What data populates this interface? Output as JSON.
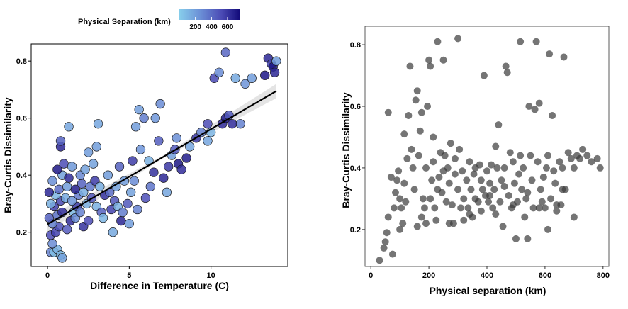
{
  "chart_data": [
    {
      "type": "scatter",
      "id": "left",
      "xlabel": "Difference in Temperature (C)",
      "ylabel": "Bray-Curtis Dissimilarity",
      "xlim": [
        -1,
        14.7
      ],
      "ylim": [
        0.08,
        0.86
      ],
      "xticks": [
        0,
        5,
        10
      ],
      "yticks": [
        0.2,
        0.4,
        0.6,
        0.8
      ],
      "trend": {
        "x0": 0,
        "y0": 0.228,
        "x1": 14,
        "y1": 0.695,
        "ci": 0.02
      },
      "color_legend": {
        "title": "Physical Separation (km)",
        "range": [
          0,
          750
        ],
        "ticks": [
          200,
          400,
          600
        ],
        "colors": [
          "#87ceeb",
          "#6b8fd6",
          "#4b4bb5",
          "#120b7a"
        ]
      },
      "points": [
        [
          0.2,
          0.13,
          300
        ],
        [
          0.4,
          0.13,
          60
        ],
        [
          0.6,
          0.14,
          120
        ],
        [
          0.8,
          0.12,
          90
        ],
        [
          0.9,
          0.11,
          180
        ],
        [
          0.3,
          0.16,
          260
        ],
        [
          0.2,
          0.19,
          500
        ],
        [
          0.5,
          0.2,
          540
        ],
        [
          0.7,
          0.22,
          480
        ],
        [
          0.3,
          0.23,
          300
        ],
        [
          0.1,
          0.25,
          420
        ],
        [
          0.6,
          0.26,
          350
        ],
        [
          0.9,
          0.27,
          610
        ],
        [
          0.4,
          0.29,
          560
        ],
        [
          0.2,
          0.3,
          120
        ],
        [
          0.8,
          0.31,
          520
        ],
        [
          1.1,
          0.32,
          150
        ],
        [
          0.5,
          0.33,
          100
        ],
        [
          0.1,
          0.34,
          640
        ],
        [
          0.7,
          0.35,
          380
        ],
        [
          1.2,
          0.36,
          200
        ],
        [
          0.3,
          0.38,
          250
        ],
        [
          0.9,
          0.4,
          180
        ],
        [
          0.6,
          0.42,
          700
        ],
        [
          1.0,
          0.44,
          500
        ],
        [
          0.8,
          0.5,
          640
        ],
        [
          0.8,
          0.52,
          420
        ],
        [
          1.3,
          0.57,
          160
        ],
        [
          1.5,
          0.43,
          210
        ],
        [
          1.2,
          0.21,
          440
        ],
        [
          1.4,
          0.24,
          620
        ],
        [
          1.6,
          0.27,
          70
        ],
        [
          1.8,
          0.29,
          560
        ],
        [
          1.5,
          0.31,
          230
        ],
        [
          1.9,
          0.33,
          330
        ],
        [
          1.7,
          0.35,
          680
        ],
        [
          2.1,
          0.37,
          420
        ],
        [
          1.3,
          0.39,
          620
        ],
        [
          2.0,
          0.4,
          280
        ],
        [
          2.3,
          0.42,
          180
        ],
        [
          1.7,
          0.25,
          260
        ],
        [
          2.2,
          0.22,
          600
        ],
        [
          2.5,
          0.24,
          500
        ],
        [
          2.0,
          0.27,
          300
        ],
        [
          2.4,
          0.3,
          120
        ],
        [
          2.7,
          0.32,
          460
        ],
        [
          2.2,
          0.34,
          130
        ],
        [
          2.6,
          0.36,
          340
        ],
        [
          2.9,
          0.38,
          560
        ],
        [
          3.0,
          0.29,
          120
        ],
        [
          2.8,
          0.44,
          180
        ],
        [
          2.5,
          0.48,
          200
        ],
        [
          3.0,
          0.5,
          190
        ],
        [
          3.1,
          0.58,
          160
        ],
        [
          3.3,
          0.27,
          420
        ],
        [
          3.5,
          0.33,
          600
        ],
        [
          3.2,
          0.36,
          130
        ],
        [
          3.7,
          0.4,
          200
        ],
        [
          3.4,
          0.25,
          100
        ],
        [
          3.9,
          0.28,
          540
        ],
        [
          4.1,
          0.31,
          460
        ],
        [
          3.8,
          0.34,
          380
        ],
        [
          4.3,
          0.29,
          120
        ],
        [
          4.0,
          0.2,
          150
        ],
        [
          4.5,
          0.24,
          650
        ],
        [
          4.2,
          0.36,
          180
        ],
        [
          4.7,
          0.38,
          200
        ],
        [
          4.4,
          0.43,
          420
        ],
        [
          4.6,
          0.27,
          320
        ],
        [
          4.9,
          0.3,
          450
        ],
        [
          5.1,
          0.34,
          180
        ],
        [
          5.3,
          0.38,
          260
        ],
        [
          5.0,
          0.23,
          200
        ],
        [
          5.5,
          0.28,
          300
        ],
        [
          5.2,
          0.45,
          560
        ],
        [
          5.7,
          0.49,
          230
        ],
        [
          5.4,
          0.57,
          200
        ],
        [
          5.9,
          0.6,
          320
        ],
        [
          5.6,
          0.63,
          190
        ],
        [
          6.0,
          0.32,
          480
        ],
        [
          6.3,
          0.36,
          350
        ],
        [
          6.5,
          0.41,
          600
        ],
        [
          6.2,
          0.45,
          120
        ],
        [
          6.8,
          0.52,
          430
        ],
        [
          6.6,
          0.6,
          220
        ],
        [
          6.9,
          0.65,
          260
        ],
        [
          7.1,
          0.39,
          640
        ],
        [
          7.4,
          0.43,
          580
        ],
        [
          7.6,
          0.47,
          200
        ],
        [
          7.3,
          0.34,
          160
        ],
        [
          7.8,
          0.49,
          440
        ],
        [
          8.0,
          0.44,
          700
        ],
        [
          8.2,
          0.42,
          620
        ],
        [
          7.9,
          0.53,
          250
        ],
        [
          8.5,
          0.46,
          680
        ],
        [
          8.7,
          0.5,
          160
        ],
        [
          9.1,
          0.53,
          580
        ],
        [
          9.4,
          0.55,
          300
        ],
        [
          9.8,
          0.58,
          500
        ],
        [
          10.2,
          0.74,
          520
        ],
        [
          10.5,
          0.76,
          260
        ],
        [
          10.7,
          0.58,
          620
        ],
        [
          10.9,
          0.6,
          700
        ],
        [
          11.1,
          0.61,
          450
        ],
        [
          10.9,
          0.83,
          400
        ],
        [
          11.5,
          0.74,
          150
        ],
        [
          12.1,
          0.72,
          230
        ],
        [
          12.5,
          0.74,
          200
        ],
        [
          13.3,
          0.75,
          700
        ],
        [
          13.5,
          0.81,
          640
        ],
        [
          13.7,
          0.79,
          520
        ],
        [
          13.8,
          0.78,
          720
        ],
        [
          13.9,
          0.76,
          640
        ],
        [
          14.0,
          0.8,
          200
        ],
        [
          11.8,
          0.58,
          300
        ],
        [
          11.3,
          0.58,
          620
        ],
        [
          9.8,
          0.52,
          160
        ],
        [
          10.0,
          0.55,
          100
        ]
      ]
    },
    {
      "type": "scatter",
      "id": "right",
      "xlabel": "Physical separation (km)",
      "ylabel": "Bray-Curtis Dissimilarity",
      "xlim": [
        -20,
        820
      ],
      "ylim": [
        0.08,
        0.86
      ],
      "xticks": [
        0,
        200,
        400,
        600,
        800
      ],
      "yticks": [
        0.2,
        0.4,
        0.6,
        0.8
      ],
      "points": [
        [
          30,
          0.1
        ],
        [
          45,
          0.14
        ],
        [
          50,
          0.16
        ],
        [
          55,
          0.19
        ],
        [
          60,
          0.24
        ],
        [
          75,
          0.12
        ],
        [
          80,
          0.27
        ],
        [
          85,
          0.32
        ],
        [
          90,
          0.36
        ],
        [
          95,
          0.39
        ],
        [
          100,
          0.2
        ],
        [
          100,
          0.3
        ],
        [
          105,
          0.27
        ],
        [
          110,
          0.22
        ],
        [
          115,
          0.35
        ],
        [
          120,
          0.29
        ],
        [
          125,
          0.43
        ],
        [
          130,
          0.57
        ],
        [
          135,
          0.73
        ],
        [
          140,
          0.46
        ],
        [
          145,
          0.4
        ],
        [
          150,
          0.33
        ],
        [
          155,
          0.62
        ],
        [
          160,
          0.65
        ],
        [
          165,
          0.44
        ],
        [
          170,
          0.52
        ],
        [
          175,
          0.58
        ],
        [
          180,
          0.3
        ],
        [
          185,
          0.27
        ],
        [
          190,
          0.22
        ],
        [
          195,
          0.6
        ],
        [
          200,
          0.75
        ],
        [
          205,
          0.73
        ],
        [
          210,
          0.36
        ],
        [
          215,
          0.42
        ],
        [
          220,
          0.27
        ],
        [
          225,
          0.23
        ],
        [
          230,
          0.81
        ],
        [
          235,
          0.37
        ],
        [
          240,
          0.45
        ],
        [
          245,
          0.32
        ],
        [
          250,
          0.75
        ],
        [
          255,
          0.44
        ],
        [
          260,
          0.29
        ],
        [
          265,
          0.4
        ],
        [
          270,
          0.35
        ],
        [
          275,
          0.48
        ],
        [
          280,
          0.28
        ],
        [
          285,
          0.22
        ],
        [
          290,
          0.38
        ],
        [
          300,
          0.82
        ],
        [
          300,
          0.33
        ],
        [
          305,
          0.46
        ],
        [
          310,
          0.27
        ],
        [
          315,
          0.39
        ],
        [
          320,
          0.3
        ],
        [
          330,
          0.36
        ],
        [
          335,
          0.27
        ],
        [
          340,
          0.42
        ],
        [
          345,
          0.33
        ],
        [
          350,
          0.24
        ],
        [
          355,
          0.38
        ],
        [
          360,
          0.3
        ],
        [
          370,
          0.29
        ],
        [
          375,
          0.41
        ],
        [
          380,
          0.36
        ],
        [
          385,
          0.33
        ],
        [
          390,
          0.7
        ],
        [
          395,
          0.31
        ],
        [
          400,
          0.39
        ],
        [
          405,
          0.29
        ],
        [
          410,
          0.35
        ],
        [
          415,
          0.41
        ],
        [
          420,
          0.27
        ],
        [
          425,
          0.33
        ],
        [
          430,
          0.47
        ],
        [
          435,
          0.4
        ],
        [
          440,
          0.54
        ],
        [
          445,
          0.29
        ],
        [
          450,
          0.36
        ],
        [
          455,
          0.21
        ],
        [
          460,
          0.4
        ],
        [
          465,
          0.73
        ],
        [
          470,
          0.71
        ],
        [
          475,
          0.31
        ],
        [
          480,
          0.45
        ],
        [
          485,
          0.27
        ],
        [
          490,
          0.42
        ],
        [
          495,
          0.35
        ],
        [
          500,
          0.17
        ],
        [
          505,
          0.29
        ],
        [
          510,
          0.38
        ],
        [
          515,
          0.81
        ],
        [
          520,
          0.33
        ],
        [
          525,
          0.4
        ],
        [
          530,
          0.24
        ],
        [
          535,
          0.3
        ],
        [
          540,
          0.17
        ],
        [
          545,
          0.6
        ],
        [
          550,
          0.44
        ],
        [
          555,
          0.36
        ],
        [
          560,
          0.27
        ],
        [
          565,
          0.59
        ],
        [
          570,
          0.81
        ],
        [
          575,
          0.42
        ],
        [
          580,
          0.61
        ],
        [
          585,
          0.33
        ],
        [
          590,
          0.29
        ],
        [
          595,
          0.37
        ],
        [
          600,
          0.27
        ],
        [
          605,
          0.4
        ],
        [
          610,
          0.44
        ],
        [
          615,
          0.77
        ],
        [
          620,
          0.3
        ],
        [
          625,
          0.57
        ],
        [
          630,
          0.39
        ],
        [
          635,
          0.35
        ],
        [
          640,
          0.28
        ],
        [
          650,
          0.42
        ],
        [
          655,
          0.28
        ],
        [
          660,
          0.4
        ],
        [
          665,
          0.76
        ],
        [
          670,
          0.33
        ],
        [
          680,
          0.45
        ],
        [
          690,
          0.43
        ],
        [
          700,
          0.4
        ],
        [
          710,
          0.44
        ],
        [
          720,
          0.43
        ],
        [
          730,
          0.46
        ],
        [
          745,
          0.44
        ],
        [
          760,
          0.42
        ],
        [
          780,
          0.43
        ],
        [
          790,
          0.4
        ],
        [
          60,
          0.58
        ],
        [
          70,
          0.37
        ],
        [
          115,
          0.51
        ],
        [
          160,
          0.21
        ],
        [
          175,
          0.24
        ],
        [
          190,
          0.4
        ],
        [
          205,
          0.3
        ],
        [
          215,
          0.5
        ],
        [
          230,
          0.33
        ],
        [
          250,
          0.39
        ],
        [
          270,
          0.22
        ],
        [
          290,
          0.43
        ],
        [
          320,
          0.23
        ],
        [
          340,
          0.25
        ],
        [
          360,
          0.4
        ],
        [
          380,
          0.26
        ],
        [
          410,
          0.31
        ],
        [
          430,
          0.25
        ],
        [
          460,
          0.34
        ],
        [
          490,
          0.28
        ],
        [
          515,
          0.44
        ],
        [
          540,
          0.32
        ],
        [
          580,
          0.27
        ],
        [
          610,
          0.2
        ],
        [
          640,
          0.26
        ],
        [
          660,
          0.33
        ],
        [
          700,
          0.24
        ]
      ]
    }
  ]
}
